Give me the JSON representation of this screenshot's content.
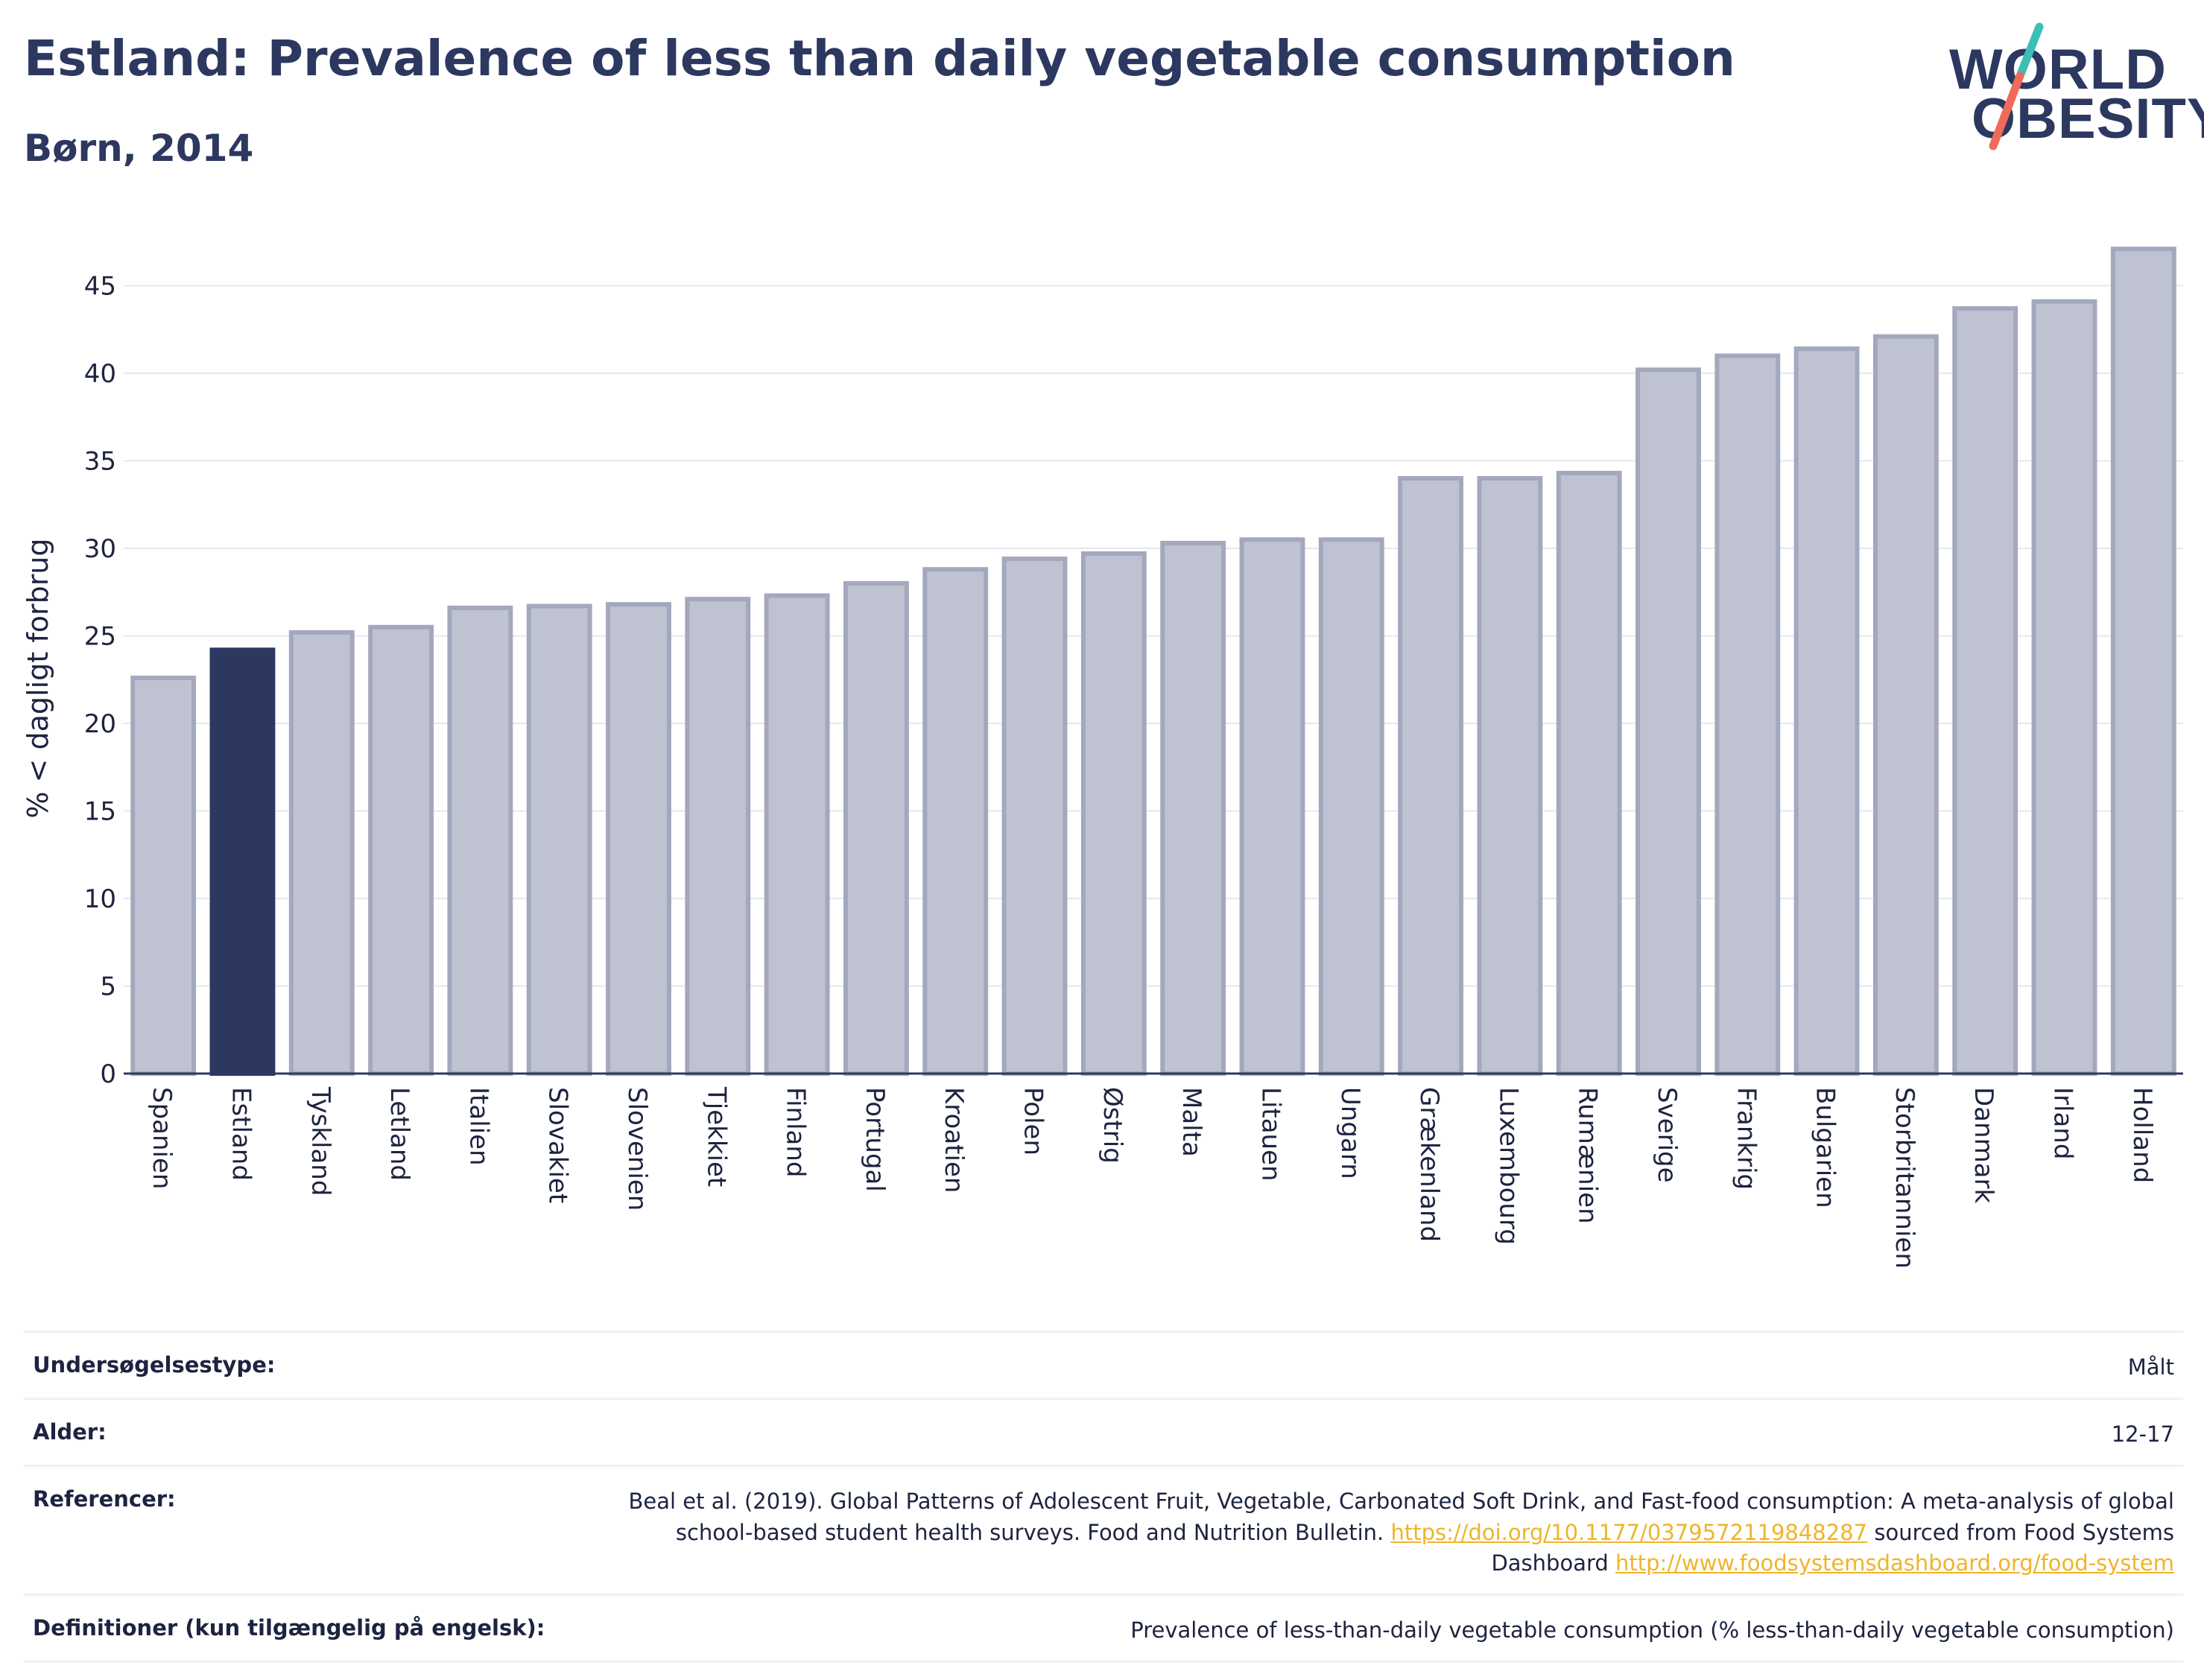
{
  "header": {
    "title": "Estland: Prevalence of less than daily vegetable consumption",
    "subtitle": "Børn, 2014"
  },
  "logo": {
    "line1": "WORLD",
    "line2": "OBESITY",
    "colors": [
      "#2c3860",
      "#3cbfb4",
      "#f06a5a"
    ]
  },
  "chart_data": {
    "type": "bar",
    "categories": [
      "Spanien",
      "Estland",
      "Tyskland",
      "Letland",
      "Italien",
      "Slovakiet",
      "Slovenien",
      "Tjekkiet",
      "Finland",
      "Portugal",
      "Kroatien",
      "Polen",
      "Østrig",
      "Malta",
      "Litauen",
      "Ungarn",
      "Grækenland",
      "Luxembourg",
      "Rumænien",
      "Sverige",
      "Frankrig",
      "Bulgarien",
      "Storbritannien",
      "Danmark",
      "Irland",
      "Holland"
    ],
    "values": [
      22.6,
      24.2,
      25.2,
      25.5,
      26.6,
      26.7,
      26.8,
      27.1,
      27.3,
      28.0,
      28.8,
      29.4,
      29.7,
      30.3,
      30.5,
      30.5,
      34.0,
      34.0,
      34.3,
      40.2,
      41.0,
      41.4,
      42.1,
      43.7,
      44.1,
      47.1
    ],
    "highlight": "Estland",
    "ylabel": "% < dagligt forbrug",
    "xlabel": "",
    "ylim": [
      0,
      48
    ],
    "yticks": [
      0,
      5,
      10,
      15,
      20,
      25,
      30,
      35,
      40,
      45
    ],
    "grid": true,
    "colors": {
      "bar": "#bfc2d0",
      "bar_edge": "#a3a8bd",
      "highlight": "#2c3860",
      "grid": "#e6e8ef",
      "axis": "#2c3860"
    }
  },
  "info": {
    "survey_label": "Undersøgelsestype:",
    "survey_value": "Målt",
    "age_label": "Alder:",
    "age_value": "12-17",
    "refs_label": "Referencer:",
    "refs_text1": "Beal et al. (2019). Global Patterns of Adolescent Fruit, Vegetable, Carbonated Soft Drink, and Fast-food consumption: A meta-analysis of global school-based student health surveys. Food and Nutrition Bulletin.",
    "refs_link1": "https://doi.org/10.1177/0379572119848287",
    "refs_text2": "sourced from Food Systems Dashboard",
    "refs_link2": "http://www.foodsystemsdashboard.org/food-system",
    "defs_label": "Definitioner (kun tilgængelig på engelsk):",
    "defs_value": "Prevalence of less-than-daily vegetable consumption (% less-than-daily vegetable consumption)"
  }
}
